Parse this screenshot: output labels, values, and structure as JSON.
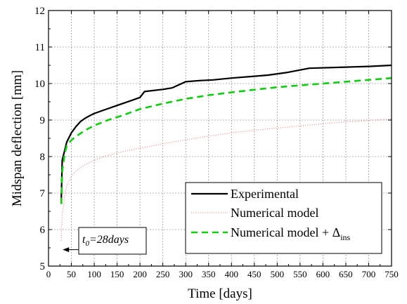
{
  "chart_data": {
    "type": "line",
    "xlabel": "Time [days]",
    "ylabel": "Midspan deflection [mm]",
    "xlim": [
      0,
      750
    ],
    "ylim": [
      5,
      12
    ],
    "xticks": [
      0,
      50,
      100,
      150,
      200,
      250,
      300,
      350,
      400,
      450,
      500,
      550,
      600,
      650,
      700,
      750
    ],
    "yticks": [
      5,
      6,
      7,
      8,
      9,
      10,
      11,
      12
    ],
    "grid": true,
    "legend_position": "bottom-right",
    "series": [
      {
        "name": "Experimental",
        "color": "#000000",
        "style": "solid",
        "x": [
          28,
          30,
          35,
          40,
          50,
          60,
          70,
          80,
          90,
          100,
          120,
          150,
          180,
          200,
          210,
          250,
          270,
          300,
          330,
          360,
          400,
          450,
          480,
          520,
          570,
          650,
          700,
          750
        ],
        "y": [
          6.85,
          7.9,
          8.15,
          8.4,
          8.65,
          8.82,
          8.96,
          9.05,
          9.12,
          9.18,
          9.27,
          9.4,
          9.53,
          9.62,
          9.78,
          9.84,
          9.88,
          10.05,
          10.08,
          10.1,
          10.15,
          10.2,
          10.23,
          10.3,
          10.42,
          10.45,
          10.47,
          10.5
        ]
      },
      {
        "name": "Numerical model",
        "color": "#e8a0a0",
        "style": "dotted",
        "x": [
          28,
          30,
          35,
          40,
          50,
          60,
          80,
          100,
          130,
          160,
          200,
          250,
          300,
          350,
          400,
          450,
          500,
          550,
          600,
          650,
          700,
          750
        ],
        "y": [
          5.7,
          6.4,
          6.9,
          7.2,
          7.45,
          7.6,
          7.78,
          7.9,
          8.03,
          8.13,
          8.23,
          8.35,
          8.46,
          8.56,
          8.65,
          8.72,
          8.78,
          8.84,
          8.9,
          8.95,
          8.99,
          9.03
        ]
      },
      {
        "name": "Numerical model + Δins",
        "color": "#11cc11",
        "style": "dashed",
        "x": [
          28,
          30,
          35,
          40,
          50,
          60,
          80,
          100,
          130,
          160,
          200,
          250,
          300,
          350,
          400,
          450,
          500,
          550,
          600,
          650,
          700,
          750
        ],
        "y": [
          6.7,
          7.6,
          8.05,
          8.3,
          8.45,
          8.55,
          8.72,
          8.85,
          9.0,
          9.12,
          9.3,
          9.45,
          9.58,
          9.68,
          9.76,
          9.83,
          9.9,
          9.95,
          10.0,
          10.05,
          10.1,
          10.15
        ]
      }
    ],
    "legend": {
      "entries": [
        {
          "label": "Experimental",
          "sub": ""
        },
        {
          "label": "Numerical model",
          "sub": ""
        },
        {
          "label": "Numerical model + Δ",
          "sub": "ins"
        }
      ]
    },
    "annotation": {
      "t_symbol": "t",
      "t_sub": "0",
      "rest": "=28days",
      "arrow_x": 28,
      "arrow_y": 5.45
    }
  }
}
